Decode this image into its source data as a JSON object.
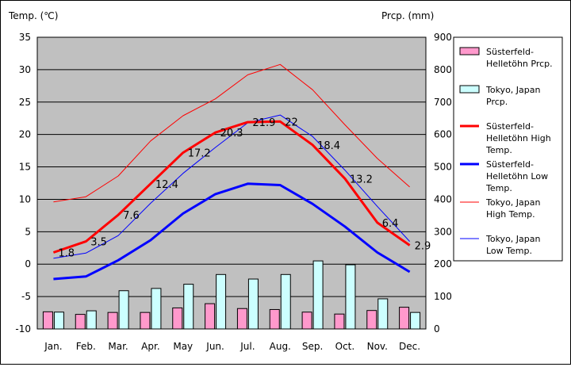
{
  "chart_data": {
    "type": "bar+line",
    "left_axis_title": "Temp. (℃)",
    "right_axis_title": "Prcp. (mm)",
    "y_left": {
      "min": -10,
      "max": 35,
      "step": 5,
      "ticks": [
        "35",
        "30",
        "25",
        "20",
        "15",
        "10",
        "5",
        "0",
        "-5",
        "-10"
      ]
    },
    "y_right": {
      "min": 0,
      "max": 900,
      "step": 100,
      "ticks": [
        "900",
        "800",
        "700",
        "600",
        "500",
        "400",
        "300",
        "200",
        "100",
        "0"
      ]
    },
    "categories": [
      "Jan.",
      "Feb.",
      "Mar.",
      "Apr.",
      "May",
      "Jun.",
      "Jul.",
      "Aug.",
      "Sep.",
      "Oct.",
      "Nov.",
      "Dec."
    ],
    "grid": true,
    "legend_position": "right",
    "bars": [
      {
        "name": "Süsterfeld-Helletöhn Prcp.",
        "legend_lines": [
          "Süsterfeld-",
          "Helletöhn Prcp."
        ],
        "color": "#ff99cc",
        "values": [
          53,
          45,
          51,
          51,
          65,
          78,
          63,
          60,
          52,
          46,
          57,
          67
        ]
      },
      {
        "name": "Tokyo, Japan Prcp.",
        "legend_lines": [
          "Tokyo, Japan",
          "Prcp."
        ],
        "color": "#ccffff",
        "values": [
          52,
          56,
          118,
          125,
          138,
          168,
          154,
          168,
          210,
          198,
          93,
          51
        ]
      }
    ],
    "lines": [
      {
        "name": "Süsterfeld-Helletöhn High Temp.",
        "legend_lines": [
          "Süsterfeld-",
          "Helletöhn High",
          "Temp."
        ],
        "color": "#ff0000",
        "width": 3,
        "values": [
          1.8,
          3.5,
          7.6,
          12.4,
          17.2,
          20.3,
          21.9,
          22.0,
          18.4,
          13.2,
          6.4,
          2.9
        ],
        "labels": [
          "1.8",
          "3.5",
          "7.6",
          "12.4",
          "17.2",
          "20.3",
          "21.9",
          "22",
          "18.4",
          "13.2",
          "6.4",
          "2.9"
        ]
      },
      {
        "name": "Süsterfeld-Helletöhn Low Temp.",
        "legend_lines": [
          "Süsterfeld-",
          "Helletöhn Low",
          "Temp."
        ],
        "color": "#0000ff",
        "width": 3,
        "values": [
          -2.3,
          -1.9,
          0.6,
          3.7,
          7.8,
          10.8,
          12.4,
          12.2,
          9.3,
          5.8,
          1.8,
          -1.2
        ]
      },
      {
        "name": "Tokyo, Japan High Temp.",
        "legend_lines": [
          "Tokyo, Japan",
          "High Temp."
        ],
        "color": "#ff0000",
        "width": 1,
        "values": [
          9.6,
          10.4,
          13.6,
          19.0,
          22.9,
          25.5,
          29.2,
          30.8,
          26.9,
          21.5,
          16.3,
          11.9
        ]
      },
      {
        "name": "Tokyo, Japan Low Temp.",
        "legend_lines": [
          "Tokyo, Japan",
          "Low Temp."
        ],
        "color": "#0000ff",
        "width": 1,
        "values": [
          0.9,
          1.7,
          4.4,
          9.4,
          14.0,
          18.0,
          21.8,
          23.0,
          19.7,
          14.5,
          8.9,
          3.5
        ]
      }
    ]
  }
}
